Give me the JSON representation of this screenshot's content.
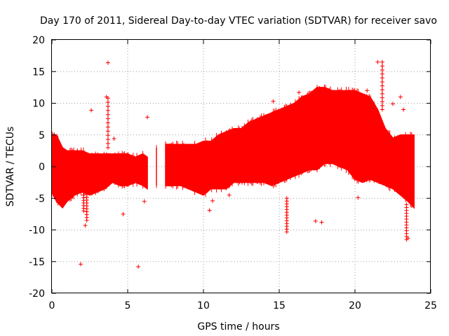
{
  "chart_data": {
    "type": "scatter",
    "title": "Day 170 of 2011, Sidereal Day-to-day VTEC variation (SDTVAR) for receiver savo",
    "xlabel": "GPS time / hours",
    "ylabel": "SDTVAR / TECUs",
    "xlim": [
      0,
      25
    ],
    "ylim": [
      -20,
      20
    ],
    "xticks": [
      0,
      5,
      10,
      15,
      20,
      25
    ],
    "yticks": [
      -20,
      -15,
      -10,
      -5,
      0,
      5,
      10,
      15,
      20
    ],
    "xtick_labels": [
      "0",
      "5",
      "10",
      "15",
      "20",
      "25"
    ],
    "ytick_labels": [
      "-20",
      "-15",
      "-10",
      "-5",
      "0",
      "5",
      "10",
      "15",
      "20"
    ],
    "grid": true,
    "marker": "+",
    "color": "#ff0000",
    "series": [
      {
        "name": "SDTVAR",
        "band": {
          "x": [
            0.0,
            0.3,
            0.7,
            1.0,
            1.5,
            2.0,
            2.5,
            3.0,
            3.5,
            4.0,
            4.5,
            5.0,
            5.5,
            6.0,
            6.3,
            6.9,
            7.5,
            8.0,
            8.5,
            9.0,
            9.5,
            10.0,
            10.5,
            11.0,
            11.5,
            12.0,
            12.5,
            13.0,
            13.5,
            14.0,
            14.5,
            15.0,
            15.5,
            16.0,
            16.5,
            17.0,
            17.5,
            18.0,
            18.5,
            19.0,
            19.5,
            20.0,
            20.5,
            21.0,
            21.5,
            22.0,
            22.5,
            23.0,
            23.5,
            23.9
          ],
          "upper": [
            5.0,
            5.0,
            3.0,
            2.5,
            2.5,
            2.5,
            2.0,
            2.0,
            2.0,
            2.0,
            2.0,
            2.0,
            1.5,
            2.0,
            1.5,
            3.0,
            3.5,
            3.5,
            3.5,
            3.5,
            3.5,
            4.0,
            4.0,
            5.0,
            5.5,
            6.0,
            6.0,
            7.0,
            7.5,
            8.0,
            8.5,
            9.0,
            9.5,
            10.0,
            11.0,
            11.5,
            12.5,
            12.5,
            12.0,
            12.0,
            12.0,
            12.0,
            11.5,
            11.0,
            9.0,
            6.0,
            4.5,
            5.0,
            5.0,
            5.0
          ],
          "lower": [
            -4.0,
            -5.5,
            -6.5,
            -5.5,
            -4.5,
            -4.0,
            -4.5,
            -4.0,
            -3.5,
            -2.5,
            -3.0,
            -3.0,
            -2.5,
            -3.0,
            -3.5,
            -3.0,
            -3.0,
            -3.0,
            -3.0,
            -3.5,
            -4.0,
            -4.5,
            -3.5,
            -3.5,
            -3.5,
            -2.5,
            -2.5,
            -2.5,
            -2.5,
            -2.5,
            -3.0,
            -2.5,
            -2.0,
            -1.5,
            -1.0,
            -0.5,
            -0.5,
            0.5,
            0.5,
            0.0,
            -0.5,
            -2.0,
            -2.5,
            -2.0,
            -2.5,
            -3.0,
            -3.5,
            -4.5,
            -5.5,
            -6.5
          ]
        },
        "scatter": {
          "x": [
            1.9,
            2.2,
            2.6,
            3.7,
            3.6,
            4.1,
            4.7,
            5.7,
            6.1,
            6.3,
            10.4,
            10.6,
            11.7,
            14.6,
            15.6,
            16.3,
            17.4,
            17.8,
            20.2,
            20.8,
            21.5,
            22.5,
            23.0,
            23.2,
            23.5
          ],
          "y": [
            -15.4,
            -9.3,
            8.9,
            16.4,
            11.0,
            4.4,
            -7.5,
            -15.8,
            -5.5,
            7.8,
            -6.9,
            -5.4,
            -4.5,
            10.3,
            8.2,
            11.7,
            -8.6,
            -8.8,
            -4.9,
            12.0,
            16.5,
            9.9,
            11.0,
            9.0,
            -11.3
          ]
        },
        "spikes": {
          "x": [
            2.1,
            2.3,
            3.7,
            15.5,
            15.6,
            21.8,
            23.4
          ],
          "y_from": [
            -7.0,
            -8.5,
            3.0,
            -5.0,
            3.0,
            9.0,
            -6.0
          ],
          "y_to": [
            -2.0,
            -3.0,
            10.8,
            -10.3,
            7.5,
            16.5,
            -11.5
          ]
        }
      }
    ]
  }
}
